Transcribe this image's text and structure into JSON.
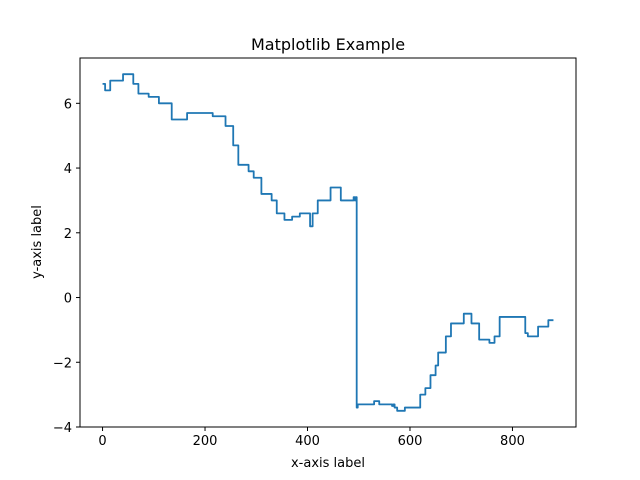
{
  "chart_data": {
    "type": "line",
    "title": "Matplotlib Example",
    "xlabel": "x-axis label",
    "ylabel": "y-axis label",
    "xlim": [
      -44,
      924
    ],
    "ylim": [
      -4,
      7.4
    ],
    "xticks": [
      0,
      200,
      400,
      600,
      800
    ],
    "xtick_labels": [
      "0",
      "200",
      "400",
      "600",
      "800"
    ],
    "yticks": [
      -4,
      -2,
      0,
      2,
      4,
      6
    ],
    "ytick_labels": [
      "−4",
      "−2",
      "0",
      "2",
      "4",
      "6"
    ],
    "grid": false,
    "legend": "none",
    "colors": {
      "series": "#1f77b4",
      "axes": "#000000",
      "background": "#ffffff"
    },
    "series": [
      {
        "step": "post",
        "x": [
          0,
          5,
          15,
          40,
          55,
          60,
          70,
          90,
          100,
          110,
          135,
          165,
          215,
          220,
          235,
          240,
          255,
          265,
          275,
          285,
          295,
          310,
          315,
          330,
          340,
          355,
          360,
          370,
          375,
          385,
          395,
          400,
          405,
          410,
          415,
          420,
          445,
          465,
          490,
          492,
          494,
          496,
          498,
          500,
          530,
          540,
          555,
          565,
          567,
          570,
          575,
          580,
          590,
          610,
          620,
          630,
          640,
          650,
          652,
          655,
          660,
          670,
          675,
          680,
          690,
          705,
          710,
          720,
          735,
          740,
          755,
          765,
          775,
          790,
          800,
          820,
          825,
          830,
          835,
          845,
          850,
          860,
          870,
          880
        ],
        "y": [
          6.6,
          6.4,
          6.7,
          6.9,
          6.9,
          6.6,
          6.3,
          6.2,
          6.2,
          6.0,
          5.5,
          5.7,
          5.6,
          5.6,
          5.6,
          5.3,
          4.7,
          4.1,
          4.1,
          3.9,
          3.7,
          3.2,
          3.2,
          3.0,
          2.6,
          2.4,
          2.4,
          2.5,
          2.5,
          2.6,
          2.6,
          2.6,
          2.2,
          2.6,
          2.6,
          3.0,
          3.4,
          3.0,
          3.1,
          3.0,
          3.1,
          -3.4,
          -3.3,
          -3.3,
          -3.2,
          -3.3,
          -3.3,
          -3.35,
          -3.3,
          -3.4,
          -3.5,
          -3.5,
          -3.4,
          -3.4,
          -3.0,
          -2.8,
          -2.4,
          -2.1,
          -2.1,
          -1.7,
          -1.7,
          -1.2,
          -1.2,
          -0.8,
          -0.8,
          -0.5,
          -0.5,
          -0.8,
          -1.3,
          -1.3,
          -1.4,
          -1.2,
          -0.6,
          -0.6,
          -0.6,
          -0.6,
          -1.1,
          -1.2,
          -1.2,
          -1.2,
          -0.9,
          -0.9,
          -0.7,
          -0.7
        ]
      }
    ]
  }
}
